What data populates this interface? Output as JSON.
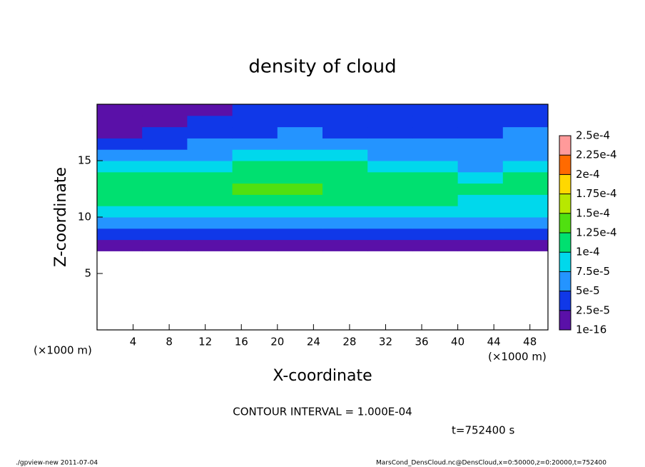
{
  "chart_data": {
    "type": "heatmap",
    "title": "density of cloud",
    "x_label": "X-coordinate",
    "y_label": "Z-coordinate",
    "unit_label": "(×1000 m)",
    "annotation": "CONTOUR INTERVAL = 1.000E-04",
    "time_label": "t=752400 s",
    "footer_left": "./gpview-new  2011-07-04",
    "footer_right": "MarsCond_DensCloud.nc@DensCloud,x=0:50000,z=0:20000,t=752400",
    "xlim": [
      0,
      50
    ],
    "ylim": [
      0,
      20
    ],
    "xticks": [
      4,
      8,
      12,
      16,
      20,
      24,
      28,
      32,
      36,
      40,
      44,
      48
    ],
    "yticks": [
      5,
      10,
      15
    ],
    "xbins": [
      0,
      5,
      10,
      15,
      20,
      25,
      30,
      35,
      40,
      45,
      50
    ],
    "ybins": [
      7,
      8,
      9,
      10,
      11,
      12,
      13,
      14,
      15,
      16,
      17,
      18,
      19,
      20
    ],
    "values": [
      [
        1e-05,
        1e-05,
        1e-05,
        1e-05,
        1e-05,
        1e-05,
        1e-05,
        1e-05,
        1e-05,
        1e-05
      ],
      [
        3e-05,
        3e-05,
        3e-05,
        3e-05,
        3e-05,
        3e-05,
        3e-05,
        3e-05,
        3e-05,
        3e-05
      ],
      [
        6e-05,
        6e-05,
        6e-05,
        6e-05,
        6e-05,
        6e-05,
        6e-05,
        6e-05,
        6e-05,
        6e-05
      ],
      [
        8.5e-05,
        9e-05,
        9e-05,
        9.5e-05,
        9.5e-05,
        9e-05,
        9e-05,
        8.5e-05,
        8e-05,
        8e-05
      ],
      [
        0.00011,
        0.00011,
        0.000115,
        0.00012,
        0.00012,
        0.000115,
        0.00011,
        0.000105,
        9.5e-05,
        9e-05
      ],
      [
        0.000115,
        0.000115,
        0.00012,
        0.000125,
        0.000125,
        0.00012,
        0.000115,
        0.00011,
        0.0001,
        0.000105
      ],
      [
        0.00011,
        0.00011,
        0.00011,
        0.00012,
        0.00012,
        0.000115,
        0.00011,
        0.000105,
        8e-05,
        0.0001
      ],
      [
        8.5e-05,
        9e-05,
        9.5e-05,
        0.000105,
        0.00011,
        0.000105,
        9.5e-05,
        9e-05,
        7e-05,
        8e-05
      ],
      [
        5.5e-05,
        6e-05,
        7e-05,
        8e-05,
        8.5e-05,
        8e-05,
        7e-05,
        7e-05,
        6e-05,
        7e-05
      ],
      [
        4e-05,
        4.5e-05,
        5e-05,
        6e-05,
        6.5e-05,
        6e-05,
        5.5e-05,
        5.5e-05,
        5.5e-05,
        6.5e-05
      ],
      [
        2e-05,
        2.5e-05,
        3.5e-05,
        4.5e-05,
        5e-05,
        4.5e-05,
        4e-05,
        4e-05,
        4.5e-05,
        5.5e-05
      ],
      [
        1e-05,
        1.5e-05,
        3e-05,
        3.5e-05,
        4e-05,
        3.5e-05,
        3e-05,
        3e-05,
        3.5e-05,
        4e-05
      ],
      [
        1e-05,
        1e-05,
        2e-05,
        2.5e-05,
        3e-05,
        2.5e-05,
        2.5e-05,
        2.5e-05,
        2.5e-05,
        3e-05
      ]
    ],
    "levels": [
      {
        "value": 1e-16,
        "label": "1e-16"
      },
      {
        "value": 2.5e-05,
        "label": "2.5e-5"
      },
      {
        "value": 5e-05,
        "label": "5e-5"
      },
      {
        "value": 7.5e-05,
        "label": "7.5e-5"
      },
      {
        "value": 0.0001,
        "label": "1e-4"
      },
      {
        "value": 0.000125,
        "label": "1.25e-4"
      },
      {
        "value": 0.00015,
        "label": "1.5e-4"
      },
      {
        "value": 0.000175,
        "label": "1.75e-4"
      },
      {
        "value": 0.0002,
        "label": "2e-4"
      },
      {
        "value": 0.000225,
        "label": "2.25e-4"
      },
      {
        "value": 0.00025,
        "label": "2.5e-4"
      }
    ],
    "colors": [
      "#5a10a8",
      "#1038e8",
      "#2494ff",
      "#00d8ec",
      "#00e070",
      "#50e010",
      "#b8e800",
      "#ffd800",
      "#ff6a00",
      "#ff9a9a"
    ]
  }
}
